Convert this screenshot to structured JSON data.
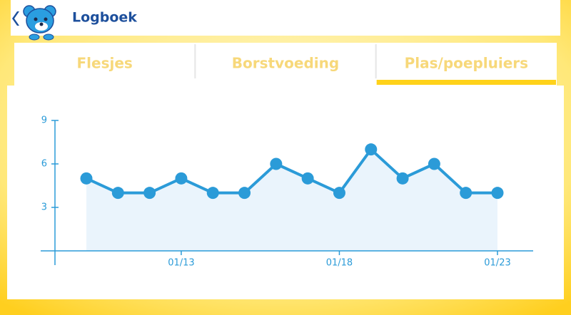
{
  "header": {
    "title": "Logboek"
  },
  "tabs": [
    {
      "label": "Flesjes"
    },
    {
      "label": "Borstvoeding"
    },
    {
      "label": "Plas/poepluiers",
      "active": true
    }
  ],
  "chart_data": {
    "type": "line",
    "categories": [
      null,
      null,
      null,
      "01/13",
      null,
      null,
      null,
      null,
      "01/18",
      null,
      null,
      null,
      null,
      "01/23"
    ],
    "series": [
      {
        "color": "#2b9bd8",
        "values": [
          5,
          4,
          4,
          5,
          4,
          4,
          6,
          5,
          4,
          7,
          5,
          6,
          4,
          4
        ]
      }
    ],
    "area_color": "#eaf4fc",
    "ylim": [
      0,
      9
    ],
    "yticks": [
      3,
      6,
      9
    ]
  }
}
